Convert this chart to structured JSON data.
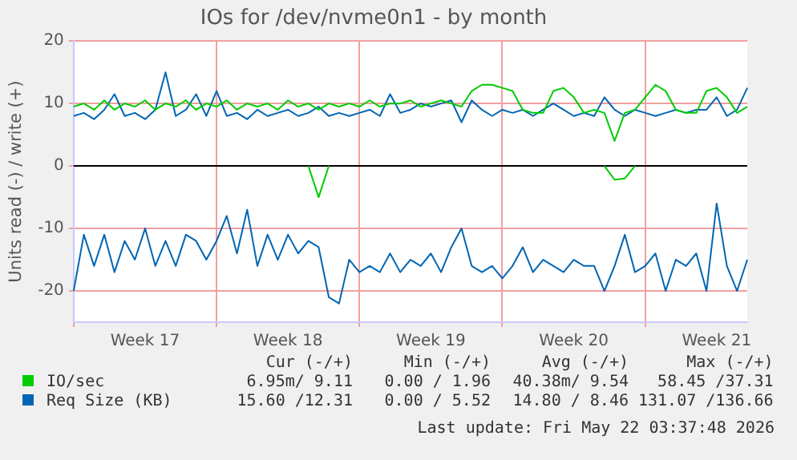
{
  "chart_data": {
    "type": "line",
    "title": "IOs for /dev/nvme0n1 - by month",
    "ylabel": "Units read (-) / write (+)",
    "categories": [
      null,
      null,
      null,
      null,
      null,
      null,
      null,
      "Week 17",
      null,
      null,
      null,
      null,
      null,
      null,
      null,
      null,
      null,
      null,
      null,
      null,
      null,
      "Week 18",
      null,
      null,
      null,
      null,
      null,
      null,
      null,
      null,
      null,
      null,
      null,
      null,
      null,
      "Week 19",
      null,
      null,
      null,
      null,
      null,
      null,
      null,
      null,
      null,
      null,
      null,
      null,
      null,
      "Week 20",
      null,
      null,
      null,
      null,
      null,
      null,
      null,
      null,
      null,
      null,
      null,
      null,
      null,
      "Week 21",
      null,
      null,
      null
    ],
    "series": [
      {
        "name": "IO/sec",
        "color": "#00cc00",
        "values": [
          9.5,
          10,
          9,
          10.5,
          9,
          10,
          9.5,
          10.5,
          9,
          10,
          9.5,
          10.5,
          9,
          10,
          9.5,
          10.5,
          9,
          10,
          9.5,
          10,
          9,
          10.5,
          9.5,
          10,
          9,
          10,
          9.5,
          10,
          9.5,
          10.5,
          9.5,
          10,
          10,
          10.5,
          9.5,
          10,
          10.5,
          10,
          9.5,
          12,
          13,
          13,
          12.5,
          12,
          9,
          8.5,
          8.5,
          12,
          12.5,
          11,
          8.5,
          9,
          8.5,
          4,
          8.5,
          9,
          11,
          13,
          12,
          9,
          8.5,
          8.5,
          12,
          12.5,
          11,
          8.5,
          9.5
        ]
      },
      {
        "color": "#00cc00",
        "values": [
          null,
          null,
          null,
          null,
          null,
          null,
          null,
          null,
          null,
          null,
          null,
          null,
          null,
          null,
          null,
          null,
          null,
          null,
          null,
          null,
          null,
          null,
          null,
          0,
          -5,
          0,
          null,
          null,
          null,
          null,
          null,
          null,
          null,
          null,
          null,
          null,
          null,
          null,
          null,
          null,
          null,
          null,
          null,
          null,
          null,
          null,
          null,
          null,
          null,
          null,
          null,
          null,
          0,
          -2.2,
          -2,
          0,
          null,
          null,
          null,
          null,
          null,
          null,
          null,
          null,
          null,
          null,
          null
        ]
      },
      {
        "name": "Req Size (KB)",
        "color": "#0066b3",
        "values": [
          8,
          8.5,
          7.5,
          9,
          11.5,
          8,
          8.5,
          7.5,
          9,
          15,
          8,
          9,
          11.5,
          8,
          12,
          8,
          8.5,
          7.5,
          9,
          8,
          8.5,
          9,
          8,
          8.5,
          9.5,
          8,
          8.5,
          8,
          8.5,
          9,
          8,
          11.5,
          8.5,
          9,
          10,
          9.5,
          10,
          10.5,
          7,
          10.5,
          9,
          8,
          9,
          8.5,
          9,
          8,
          9,
          10,
          9,
          8,
          8.5,
          8,
          11,
          9,
          8,
          9,
          8.5,
          8,
          8.5,
          9,
          8.5,
          9,
          9,
          11,
          8,
          9,
          12.5
        ]
      },
      {
        "color": "#0066b3",
        "values": [
          -20,
          -11,
          -16,
          -11,
          -17,
          -12,
          -15,
          -10,
          -16,
          -12,
          -16,
          -11,
          -12,
          -15,
          -12,
          -8,
          -14,
          -7,
          -16,
          -11,
          -15,
          -11,
          -14,
          -12,
          -13,
          -21,
          -22,
          -15,
          -17,
          -16,
          -17,
          -14,
          -17,
          -15,
          -16,
          -14,
          -17,
          -13,
          -10,
          -16,
          -17,
          -16,
          -18,
          -16,
          -13,
          -17,
          -15,
          -16,
          -17,
          -15,
          -16,
          -16,
          -20,
          -16,
          -11,
          -17,
          -16,
          -14,
          -20,
          -15,
          -16,
          -14,
          -20,
          -6,
          -16,
          -20,
          -15
        ]
      }
    ],
    "ylim": [
      -25,
      20
    ],
    "yticks": [
      -20,
      -10,
      0,
      10,
      20
    ],
    "ref_lines": [
      {
        "axis": "y",
        "value": 0,
        "color": "#000000"
      }
    ],
    "grid": true,
    "legend": "bottom",
    "marker": "none",
    "line_style": "solid",
    "annotations": [
      "Cur (-/+)",
      "Min (-/+)",
      "Avg (-/+)",
      "Max (-/+)",
      "6.95m/ 9.11",
      "0.00 / 1.96",
      "40.38m/ 9.54",
      "58.45 /37.31",
      "15.60 /12.31",
      "0.00 / 5.52",
      "14.80 / 8.46",
      "131.07 /136.66",
      "Last update: Fri May 22 03:37:48 2026"
    ]
  }
}
